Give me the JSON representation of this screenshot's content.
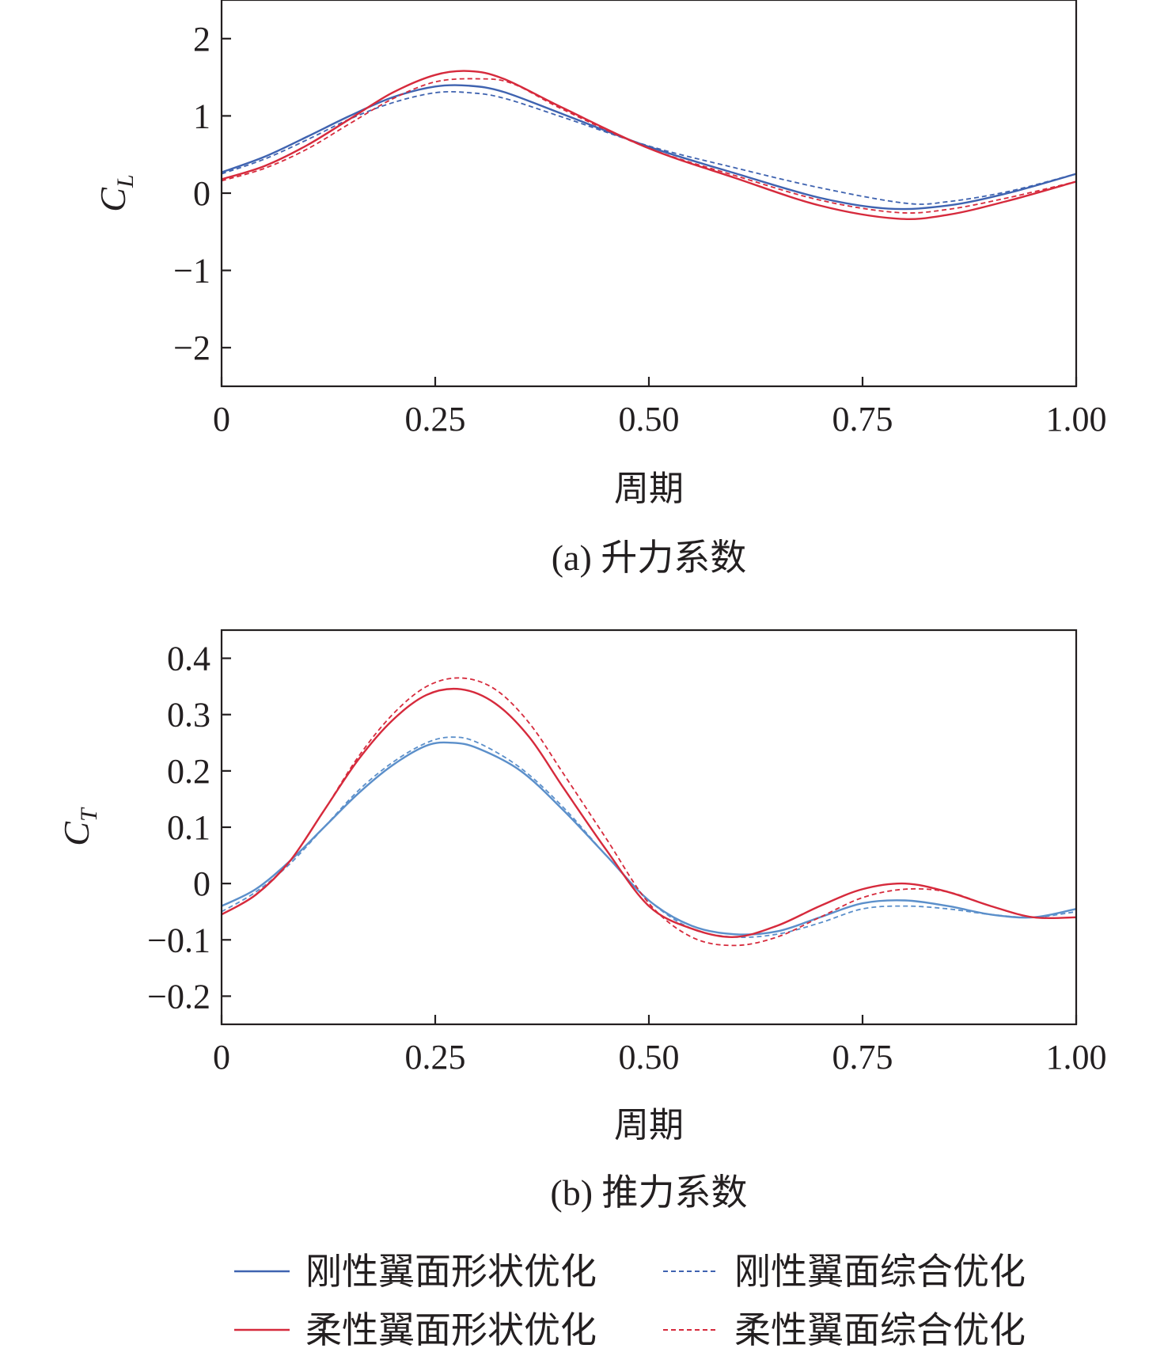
{
  "colors": {
    "rigid_solid": "#3f63b0",
    "rigid_dashed": "#3f63b0",
    "flex_solid": "#d62a3c",
    "flex_dashed": "#d62a3c",
    "rigid_solid_b": "#5b8fca",
    "rigid_dashed_b": "#5b8fca"
  },
  "legend": [
    {
      "label": "刚性翼面形状优化",
      "style": "solid",
      "color": "#3f63b0"
    },
    {
      "label": "刚性翼面综合优化",
      "style": "dashed",
      "color": "#3f63b0"
    },
    {
      "label": "柔性翼面形状优化",
      "style": "solid",
      "color": "#d62a3c"
    },
    {
      "label": "柔性翼面综合优化",
      "style": "dashed",
      "color": "#d62a3c"
    }
  ],
  "chart_data": [
    {
      "type": "line",
      "caption": "(a) 升力系数",
      "xlabel": "周期",
      "ylabel_main": "C",
      "ylabel_sub": "L",
      "xlim": [
        0,
        1.0
      ],
      "ylim": [
        -2.5,
        2.5
      ],
      "xticks": [
        0,
        0.25,
        0.5,
        0.75,
        1.0
      ],
      "xtick_labels": [
        "0",
        "0.25",
        "0.50",
        "0.75",
        "1.00"
      ],
      "yticks": [
        2,
        1,
        0,
        -1,
        -2
      ],
      "ytick_labels": [
        "2",
        "1",
        "0",
        "−1",
        "−2"
      ],
      "grid": false,
      "series": [
        {
          "name": "刚性翼面形状优化",
          "style": "solid",
          "color": "#3f63b0",
          "x": [
            0,
            0.05,
            0.1,
            0.15,
            0.2,
            0.25,
            0.29,
            0.33,
            0.4,
            0.5,
            0.6,
            0.7,
            0.78,
            0.85,
            0.92,
            1.0
          ],
          "y": [
            0.27,
            0.47,
            0.73,
            1.0,
            1.24,
            1.38,
            1.39,
            1.31,
            1.02,
            0.6,
            0.26,
            -0.06,
            -0.2,
            -0.16,
            0.0,
            0.25
          ]
        },
        {
          "name": "刚性翼面综合优化",
          "style": "dashed",
          "color": "#3f63b0",
          "x": [
            0,
            0.05,
            0.1,
            0.15,
            0.2,
            0.25,
            0.29,
            0.33,
            0.4,
            0.5,
            0.6,
            0.7,
            0.8,
            0.85,
            0.92,
            1.0
          ],
          "y": [
            0.25,
            0.44,
            0.69,
            0.96,
            1.17,
            1.3,
            1.3,
            1.23,
            0.98,
            0.61,
            0.33,
            0.07,
            -0.13,
            -0.11,
            0.02,
            0.25
          ]
        },
        {
          "name": "柔性翼面形状优化",
          "style": "solid",
          "color": "#d62a3c",
          "x": [
            0,
            0.05,
            0.1,
            0.15,
            0.2,
            0.25,
            0.29,
            0.33,
            0.4,
            0.5,
            0.6,
            0.7,
            0.79,
            0.85,
            0.92,
            1.0
          ],
          "y": [
            0.18,
            0.35,
            0.62,
            0.96,
            1.3,
            1.53,
            1.58,
            1.48,
            1.1,
            0.58,
            0.2,
            -0.16,
            -0.33,
            -0.28,
            -0.1,
            0.15
          ]
        },
        {
          "name": "柔性翼面综合优化",
          "style": "dashed",
          "color": "#d62a3c",
          "x": [
            0,
            0.05,
            0.1,
            0.15,
            0.2,
            0.25,
            0.3,
            0.34,
            0.4,
            0.5,
            0.6,
            0.7,
            0.79,
            0.85,
            0.92,
            1.0
          ],
          "y": [
            0.16,
            0.32,
            0.57,
            0.9,
            1.22,
            1.44,
            1.48,
            1.42,
            1.08,
            0.58,
            0.23,
            -0.09,
            -0.25,
            -0.21,
            -0.06,
            0.15
          ]
        }
      ]
    },
    {
      "type": "line",
      "caption": "(b) 推力系数",
      "xlabel": "周期",
      "ylabel_main": "C",
      "ylabel_sub": "T",
      "xlim": [
        0,
        1.0
      ],
      "ylim": [
        -0.25,
        0.45
      ],
      "xticks": [
        0,
        0.25,
        0.5,
        0.75,
        1.0
      ],
      "xtick_labels": [
        "0",
        "0.25",
        "0.50",
        "0.75",
        "1.00"
      ],
      "yticks": [
        0.4,
        0.3,
        0.2,
        0.1,
        0,
        -0.1,
        -0.2
      ],
      "ytick_labels": [
        "0.4",
        "0.3",
        "0.2",
        "0.1",
        "0",
        "−0.1",
        "−0.2"
      ],
      "grid": false,
      "series": [
        {
          "name": "刚性翼面形状优化",
          "style": "solid",
          "color": "#5b8fca",
          "x": [
            0,
            0.04,
            0.08,
            0.12,
            0.16,
            0.2,
            0.24,
            0.27,
            0.3,
            0.35,
            0.4,
            0.45,
            0.5,
            0.55,
            0.6,
            0.65,
            0.7,
            0.75,
            0.8,
            0.85,
            0.9,
            0.95,
            1.0
          ],
          "y": [
            -0.04,
            -0.01,
            0.04,
            0.1,
            0.16,
            0.21,
            0.245,
            0.25,
            0.24,
            0.2,
            0.13,
            0.05,
            -0.03,
            -0.075,
            -0.09,
            -0.085,
            -0.06,
            -0.035,
            -0.03,
            -0.04,
            -0.055,
            -0.06,
            -0.045
          ]
        },
        {
          "name": "刚性翼面综合优化",
          "style": "dashed",
          "color": "#5b8fca",
          "x": [
            0,
            0.04,
            0.08,
            0.12,
            0.16,
            0.2,
            0.24,
            0.27,
            0.3,
            0.35,
            0.4,
            0.45,
            0.5,
            0.55,
            0.6,
            0.65,
            0.7,
            0.75,
            0.8,
            0.85,
            0.9,
            0.95,
            1.0
          ],
          "y": [
            -0.05,
            -0.015,
            0.035,
            0.1,
            0.165,
            0.215,
            0.25,
            0.26,
            0.25,
            0.205,
            0.135,
            0.05,
            -0.03,
            -0.08,
            -0.095,
            -0.09,
            -0.07,
            -0.045,
            -0.04,
            -0.045,
            -0.055,
            -0.06,
            -0.05
          ]
        },
        {
          "name": "柔性翼面形状优化",
          "style": "solid",
          "color": "#d62a3c",
          "x": [
            0,
            0.04,
            0.08,
            0.12,
            0.16,
            0.2,
            0.24,
            0.28,
            0.32,
            0.36,
            0.4,
            0.45,
            0.5,
            0.55,
            0.6,
            0.65,
            0.7,
            0.75,
            0.8,
            0.85,
            0.9,
            0.95,
            1.0
          ],
          "y": [
            -0.055,
            -0.02,
            0.04,
            0.13,
            0.22,
            0.29,
            0.335,
            0.345,
            0.32,
            0.26,
            0.17,
            0.06,
            -0.04,
            -0.08,
            -0.095,
            -0.075,
            -0.04,
            -0.01,
            0.0,
            -0.015,
            -0.04,
            -0.06,
            -0.06
          ]
        },
        {
          "name": "柔性翼面综合优化",
          "style": "dashed",
          "color": "#d62a3c",
          "x": [
            0,
            0.04,
            0.08,
            0.12,
            0.16,
            0.2,
            0.24,
            0.28,
            0.32,
            0.36,
            0.4,
            0.45,
            0.5,
            0.55,
            0.6,
            0.65,
            0.7,
            0.75,
            0.8,
            0.85,
            0.9,
            0.95,
            1.0
          ],
          "y": [
            -0.055,
            -0.02,
            0.04,
            0.13,
            0.225,
            0.3,
            0.35,
            0.365,
            0.345,
            0.285,
            0.195,
            0.08,
            -0.035,
            -0.095,
            -0.11,
            -0.095,
            -0.06,
            -0.025,
            -0.01,
            -0.015,
            -0.04,
            -0.06,
            -0.06
          ]
        }
      ]
    }
  ]
}
